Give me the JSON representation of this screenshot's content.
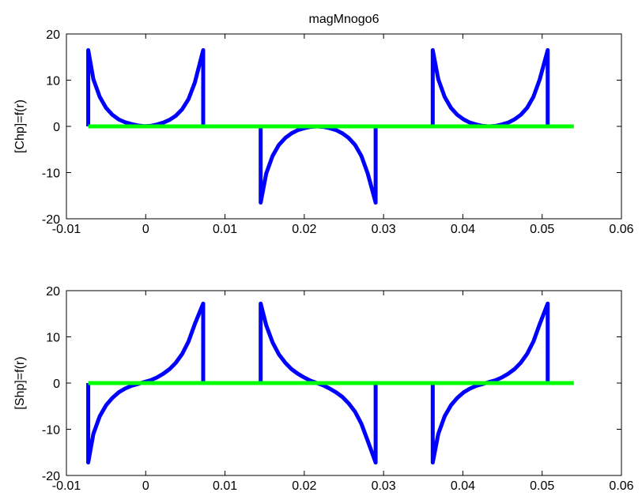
{
  "chart_data": [
    {
      "type": "line",
      "title": "magMnogo6",
      "xlabel": "",
      "ylabel": "[Chp]=f(r)",
      "xlim": [
        -0.01,
        0.06
      ],
      "ylim": [
        -20,
        20
      ],
      "xticks": [
        "-0.01",
        "0",
        "0.01",
        "0.02",
        "0.03",
        "0.04",
        "0.05",
        "0.06"
      ],
      "yticks": [
        "20",
        "10",
        "0",
        "-10",
        "-20"
      ],
      "grid": false,
      "series": [
        {
          "color": "#0000ff",
          "x": [
            -0.00725,
            -0.00725,
            -0.0066,
            -0.0058,
            -0.005,
            -0.0042,
            -0.0034,
            -0.0026,
            -0.0018,
            -0.001,
            -0.0002,
            0.0006,
            0.0014,
            0.0022,
            0.003,
            0.0038,
            0.0046,
            0.0054,
            0.0062,
            0.00725,
            0.00725,
            0.0145,
            0.0145,
            0.0152,
            0.016,
            0.0168,
            0.0176,
            0.0184,
            0.0192,
            0.02,
            0.0208,
            0.0216,
            0.0224,
            0.0232,
            0.024,
            0.0248,
            0.0256,
            0.0264,
            0.0272,
            0.028,
            0.029,
            0.029,
            0.0362,
            0.0362,
            0.0369,
            0.0377,
            0.0385,
            0.0393,
            0.0401,
            0.0409,
            0.0417,
            0.0425,
            0.0433,
            0.0441,
            0.0449,
            0.0457,
            0.0465,
            0.0473,
            0.0481,
            0.0489,
            0.0497,
            0.0507,
            0.0507
          ],
          "y": [
            0,
            16.5,
            10.2,
            6.4,
            4.0,
            2.5,
            1.5,
            0.9,
            0.5,
            0.2,
            0.05,
            0.1,
            0.4,
            0.8,
            1.4,
            2.3,
            3.7,
            5.9,
            9.5,
            16.5,
            0,
            0,
            -16.5,
            -10.2,
            -6.4,
            -4.0,
            -2.5,
            -1.5,
            -0.8,
            -0.4,
            -0.1,
            0,
            -0.1,
            -0.4,
            -0.8,
            -1.5,
            -2.5,
            -4.0,
            -6.4,
            -10.2,
            -16.5,
            0,
            0,
            16.5,
            10.2,
            6.4,
            4.0,
            2.5,
            1.5,
            0.8,
            0.4,
            0.1,
            0,
            0.1,
            0.4,
            0.8,
            1.5,
            2.5,
            4.0,
            6.4,
            10.2,
            16.5,
            0
          ]
        },
        {
          "color": "#00ff00",
          "x": [
            -0.00725,
            0.054
          ],
          "y": [
            0,
            0
          ]
        }
      ]
    },
    {
      "type": "line",
      "title": "",
      "xlabel": "",
      "ylabel": "[Shp]=f(r)",
      "xlim": [
        -0.01,
        0.06
      ],
      "ylim": [
        -20,
        20
      ],
      "xticks": [
        "-0.01",
        "0",
        "0.01",
        "0.02",
        "0.03",
        "0.04",
        "0.05",
        "0.06"
      ],
      "yticks": [
        "20",
        "10",
        "0",
        "-10",
        "-20"
      ],
      "grid": false,
      "series": [
        {
          "color": "#0000ff",
          "x": [
            -0.00725,
            -0.00725,
            -0.0066,
            -0.0058,
            -0.005,
            -0.0042,
            -0.0034,
            -0.0026,
            -0.0018,
            -0.001,
            -0.0002,
            0.0006,
            0.0014,
            0.0022,
            0.003,
            0.0038,
            0.0046,
            0.0054,
            0.0062,
            0.00725,
            0.00725,
            0.0145,
            0.0145,
            0.0152,
            0.016,
            0.0168,
            0.0176,
            0.0184,
            0.0192,
            0.02,
            0.0208,
            0.0216,
            0.0224,
            0.0232,
            0.024,
            0.0248,
            0.0256,
            0.0264,
            0.0272,
            0.028,
            0.029,
            0.029,
            0.0362,
            0.0362,
            0.0369,
            0.0377,
            0.0385,
            0.0393,
            0.0401,
            0.0409,
            0.0417,
            0.0425,
            0.0433,
            0.0441,
            0.0449,
            0.0457,
            0.0465,
            0.0473,
            0.0481,
            0.0489,
            0.0497,
            0.0507,
            0.0507
          ],
          "y": [
            0,
            -17.2,
            -11.0,
            -7.2,
            -4.8,
            -3.2,
            -2.0,
            -1.2,
            -0.6,
            -0.2,
            0.2,
            0.6,
            1.2,
            2.0,
            3.0,
            4.4,
            6.3,
            9.0,
            12.8,
            17.2,
            0,
            0,
            17.2,
            12.5,
            8.8,
            6.2,
            4.4,
            3.0,
            2.0,
            1.2,
            0.5,
            0,
            -0.5,
            -1.2,
            -2.0,
            -3.0,
            -4.4,
            -6.2,
            -8.8,
            -12.5,
            -17.2,
            0,
            0,
            -17.2,
            -11.0,
            -7.2,
            -4.8,
            -3.2,
            -2.0,
            -1.2,
            -0.6,
            -0.2,
            0.2,
            0.6,
            1.2,
            2.0,
            3.0,
            4.4,
            6.3,
            9.0,
            12.8,
            17.2,
            0
          ]
        },
        {
          "color": "#00ff00",
          "x": [
            -0.00725,
            0.054
          ],
          "y": [
            0,
            0
          ]
        }
      ]
    }
  ]
}
